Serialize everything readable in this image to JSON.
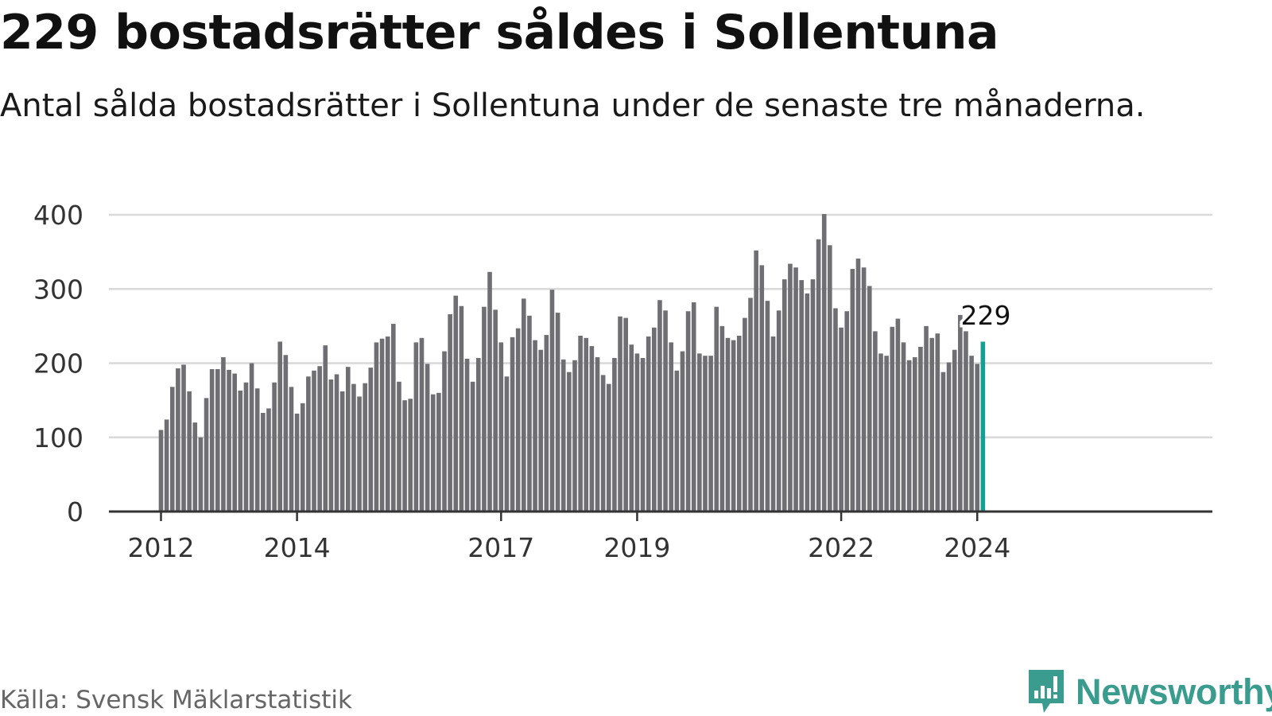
{
  "header": {
    "title": "229 bostadsrätter såldes i Sollentuna",
    "subtitle": "Antal sålda bostadsrätter i Sollentuna under de senaste tre månaderna."
  },
  "footer": {
    "source": "Källa: Svensk Mäklarstatistik",
    "brand": "Newsworthy",
    "brand_icon": "bar-chart-speech-bubble-icon"
  },
  "colors": {
    "bar": "#6e6e73",
    "highlight": "#12a094",
    "grid": "#d9d9d9",
    "axis": "#333333",
    "brand": "#3a9c8e"
  },
  "chart_data": {
    "type": "bar",
    "title": "229 bostadsrätter såldes i Sollentuna",
    "xlabel": "",
    "ylabel": "",
    "ylim": [
      0,
      400
    ],
    "yticks": [
      0,
      100,
      200,
      300,
      400
    ],
    "grid": true,
    "xticks": [
      {
        "label": "2012",
        "index": 0
      },
      {
        "label": "2014",
        "index": 24
      },
      {
        "label": "2017",
        "index": 60
      },
      {
        "label": "2019",
        "index": 84
      },
      {
        "label": "2022",
        "index": 120
      },
      {
        "label": "2024",
        "index": 144
      }
    ],
    "annotation": {
      "label": "229",
      "index": 145
    },
    "highlight_index": 145,
    "values": [
      110,
      124,
      168,
      193,
      198,
      162,
      120,
      100,
      153,
      192,
      192,
      208,
      191,
      186,
      163,
      174,
      200,
      166,
      133,
      139,
      174,
      229,
      211,
      168,
      132,
      146,
      182,
      190,
      196,
      224,
      178,
      185,
      162,
      195,
      172,
      155,
      173,
      194,
      228,
      233,
      236,
      253,
      175,
      150,
      152,
      228,
      234,
      199,
      158,
      160,
      216,
      266,
      291,
      277,
      206,
      175,
      207,
      276,
      323,
      272,
      228,
      182,
      235,
      247,
      287,
      264,
      231,
      218,
      238,
      299,
      268,
      205,
      188,
      204,
      237,
      234,
      223,
      208,
      184,
      172,
      207,
      263,
      261,
      225,
      213,
      207,
      236,
      248,
      285,
      271,
      228,
      190,
      216,
      270,
      282,
      213,
      210,
      210,
      276,
      250,
      234,
      231,
      237,
      261,
      288,
      352,
      332,
      284,
      236,
      271,
      313,
      334,
      329,
      312,
      294,
      313,
      367,
      401,
      359,
      274,
      248,
      270,
      327,
      341,
      329,
      304,
      243,
      213,
      210,
      249,
      260,
      228,
      204,
      208,
      222,
      250,
      234,
      240,
      188,
      201,
      218,
      265,
      243,
      210,
      199,
      229
    ]
  }
}
